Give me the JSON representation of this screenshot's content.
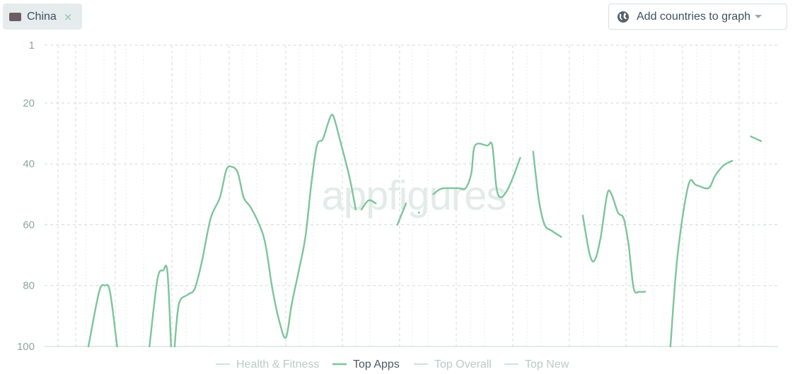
{
  "country_chip": {
    "label": "China",
    "close_glyph": "×",
    "icon": "flag-icon"
  },
  "add_countries": {
    "label": "Add countries to graph",
    "icon": "globe-icon",
    "caret": "chevron-down-icon"
  },
  "watermark": "appfigures",
  "colors": {
    "line": "#7cc59a",
    "grid": "#d3dbd8",
    "tick_text": "#8fa6a0",
    "legend_inactive": "#b9ccc4",
    "legend_active": "#4a5a66"
  },
  "chart_data": {
    "type": "line",
    "ylim": [
      100,
      1
    ],
    "y_reversed": true,
    "yticks": [
      1,
      20,
      40,
      60,
      80,
      100
    ],
    "grid": true,
    "legend_position": "bottom-center",
    "legend": [
      {
        "name": "Health & Fitness",
        "active": false
      },
      {
        "name": "Top Apps",
        "active": true
      },
      {
        "name": "Top Overall",
        "active": false
      },
      {
        "name": "Top New",
        "active": false
      }
    ],
    "series": [
      {
        "name": "Top Apps",
        "segments": [
          [
            [
              0.0,
              100
            ],
            [
              1.5,
              82
            ],
            [
              2.3,
              80
            ],
            [
              3.0,
              82
            ],
            [
              4.0,
              100
            ]
          ],
          [
            [
              8.5,
              100
            ],
            [
              9.6,
              78
            ],
            [
              10.4,
              75
            ],
            [
              11.0,
              75.5
            ],
            [
              11.5,
              100
            ]
          ],
          [
            [
              12.0,
              100
            ],
            [
              12.6,
              86
            ],
            [
              13.8,
              83
            ],
            [
              14.8,
              81
            ],
            [
              15.8,
              72
            ],
            [
              17.0,
              58
            ],
            [
              18.3,
              51
            ],
            [
              19.2,
              42
            ],
            [
              20.0,
              41
            ],
            [
              20.8,
              43
            ],
            [
              21.6,
              51
            ],
            [
              22.5,
              54
            ],
            [
              23.6,
              59
            ],
            [
              24.6,
              66
            ],
            [
              25.6,
              81
            ],
            [
              26.6,
              92
            ],
            [
              27.5,
              97
            ],
            [
              28.3,
              86
            ],
            [
              29.2,
              76
            ],
            [
              30.2,
              64
            ],
            [
              31.0,
              47
            ],
            [
              31.8,
              34
            ],
            [
              32.6,
              32
            ],
            [
              33.3,
              27
            ],
            [
              33.8,
              24
            ],
            [
              34.2,
              25
            ],
            [
              35.0,
              32
            ],
            [
              36.3,
              44
            ],
            [
              37.2,
              55
            ]
          ],
          [
            [
              38.0,
              55
            ],
            [
              39.0,
              52
            ],
            [
              40.0,
              53
            ]
          ],
          [
            [
              43.0,
              60
            ],
            [
              44.2,
              53
            ]
          ],
          [
            [
              46.0,
              56
            ]
          ],
          [
            [
              48.0,
              50
            ],
            [
              48.8,
              48.5
            ],
            [
              49.6,
              48
            ],
            [
              51.5,
              48
            ],
            [
              52.5,
              48
            ],
            [
              53.3,
              43
            ],
            [
              53.8,
              34
            ],
            [
              55.5,
              34
            ],
            [
              56.2,
              34
            ],
            [
              56.8,
              48
            ],
            [
              57.4,
              51
            ],
            [
              58.2,
              49
            ],
            [
              59.0,
              45
            ],
            [
              60.1,
              38
            ]
          ],
          [
            [
              61.9,
              36
            ],
            [
              62.7,
              52
            ],
            [
              63.5,
              60
            ],
            [
              64.5,
              62
            ],
            [
              65.8,
              64
            ]
          ],
          [
            [
              68.8,
              57
            ],
            [
              69.8,
              70
            ],
            [
              70.5,
              71.5
            ],
            [
              71.3,
              64
            ],
            [
              72.2,
              50
            ],
            [
              72.8,
              50
            ],
            [
              73.7,
              56
            ],
            [
              74.5,
              58
            ],
            [
              75.2,
              67
            ],
            [
              75.9,
              81
            ],
            [
              76.7,
              82
            ],
            [
              77.5,
              82
            ]
          ],
          [
            [
              81.0,
              100
            ],
            [
              82.0,
              70
            ],
            [
              83.5,
              47
            ],
            [
              84.6,
              47
            ],
            [
              86.3,
              48
            ],
            [
              87.2,
              44
            ],
            [
              88.4,
              40.5
            ],
            [
              89.6,
              39
            ]
          ],
          [
            [
              92.2,
              31
            ],
            [
              93.6,
              32.5
            ]
          ]
        ]
      }
    ],
    "x_range": [
      0,
      95
    ]
  }
}
